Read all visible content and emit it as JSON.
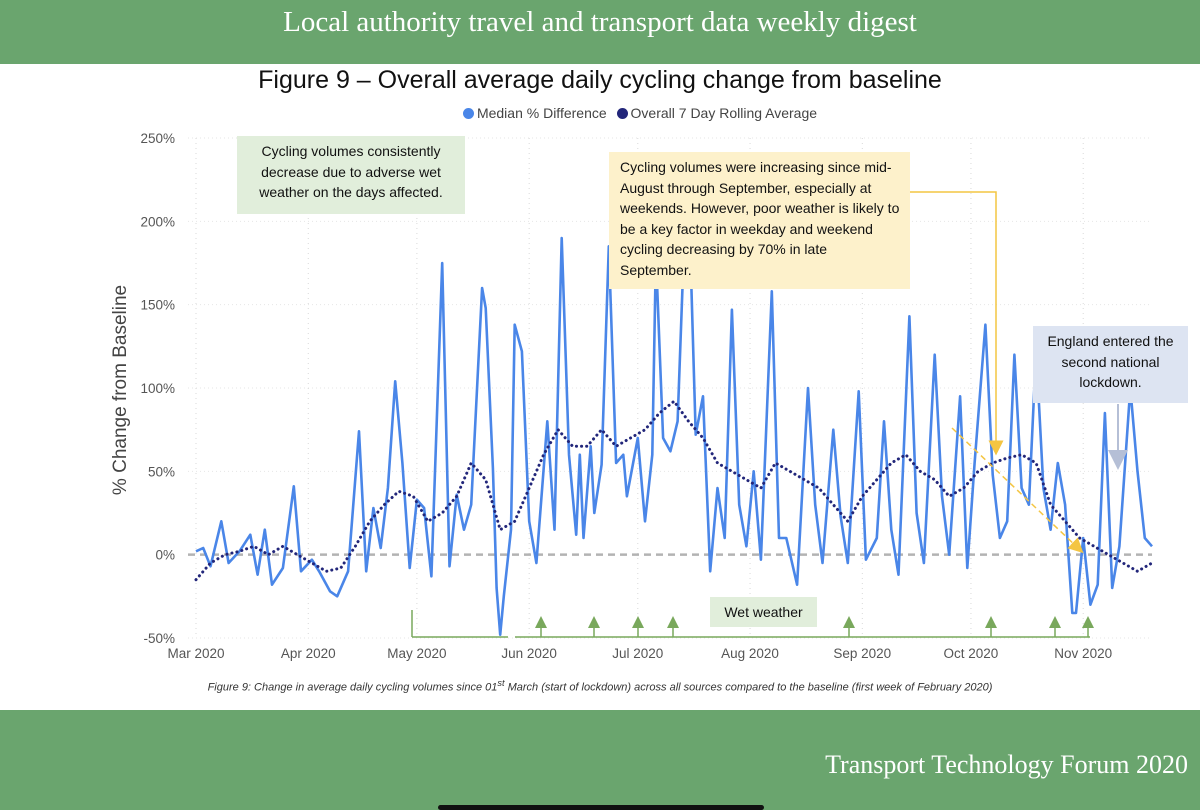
{
  "header": {
    "title": "Local authority travel and transport data weekly digest"
  },
  "footer": {
    "text": "Transport Technology Forum 2020"
  },
  "caption": {
    "prefix": "Figure 9: Change in average daily cycling volumes since 01",
    "superscript": "st",
    "suffix": " March (start of lockdown) across all sources compared to the baseline (first week of February 2020)"
  },
  "annotations": {
    "rain": "Cycling volumes consistently decrease due to adverse wet weather on the days affected.",
    "september": "Cycling volumes were increasing since mid-August through September, especially at weekends. However, poor weather is likely to be a key factor in weekday and weekend cycling decreasing by 70% in late September.",
    "lockdown": "England entered the second national lockdown.",
    "wet_weather": "Wet weather"
  },
  "colors": {
    "median": "#4a86e8",
    "rolling": "#22267a",
    "baseline": "#b3b3b3",
    "wet_markers": "#79a85c",
    "callout_arrow": "#f4c542",
    "lockdown_arrow": "#b5bfd6"
  },
  "chart_data": {
    "type": "line",
    "title": "Figure 9 – Overall average daily cycling change from baseline",
    "ylabel": "% Change from Baseline",
    "xlabel": "",
    "ylim": [
      -50,
      250
    ],
    "yticks": [
      -50,
      0,
      50,
      100,
      150,
      200,
      250
    ],
    "ytick_labels": [
      "-50%",
      "0%",
      "50%",
      "100%",
      "150%",
      "200%",
      "250%"
    ],
    "xlim": [
      "2020-03-01",
      "2020-11-20"
    ],
    "xticks": [
      "2020-03-01",
      "2020-04-01",
      "2020-05-01",
      "2020-06-01",
      "2020-07-01",
      "2020-08-01",
      "2020-09-01",
      "2020-10-01",
      "2020-11-01"
    ],
    "xtick_labels": [
      "Mar 2020",
      "Apr 2020",
      "May 2020",
      "Jun 2020",
      "Jul 2020",
      "Aug 2020",
      "Sep 2020",
      "Oct 2020",
      "Nov 2020"
    ],
    "legend": {
      "position": "top-center",
      "entries": [
        "Median % Difference",
        "Overall 7 Day Rolling Average"
      ]
    },
    "grid": {
      "vertical_dotted": true,
      "horizontal_dotted": true,
      "baseline_dashed": 0
    },
    "series": [
      {
        "name": "Median % Difference",
        "style": "solid",
        "points": [
          [
            "2020-03-01",
            2
          ],
          [
            "2020-03-03",
            4
          ],
          [
            "2020-03-05",
            -7
          ],
          [
            "2020-03-08",
            20
          ],
          [
            "2020-03-10",
            -5
          ],
          [
            "2020-03-13",
            2
          ],
          [
            "2020-03-16",
            12
          ],
          [
            "2020-03-18",
            -12
          ],
          [
            "2020-03-20",
            15
          ],
          [
            "2020-03-22",
            -18
          ],
          [
            "2020-03-25",
            -8
          ],
          [
            "2020-03-28",
            41
          ],
          [
            "2020-03-30",
            -10
          ],
          [
            "2020-04-02",
            -3
          ],
          [
            "2020-04-04",
            -10
          ],
          [
            "2020-04-07",
            -22
          ],
          [
            "2020-04-09",
            -25
          ],
          [
            "2020-04-12",
            -10
          ],
          [
            "2020-04-15",
            74
          ],
          [
            "2020-04-17",
            -10
          ],
          [
            "2020-04-19",
            28
          ],
          [
            "2020-04-21",
            4
          ],
          [
            "2020-04-23",
            40
          ],
          [
            "2020-04-25",
            104
          ],
          [
            "2020-04-27",
            55
          ],
          [
            "2020-04-29",
            -8
          ],
          [
            "2020-05-01",
            33
          ],
          [
            "2020-05-03",
            28
          ],
          [
            "2020-05-05",
            -13
          ],
          [
            "2020-05-08",
            175
          ],
          [
            "2020-05-10",
            -7
          ],
          [
            "2020-05-12",
            36
          ],
          [
            "2020-05-14",
            15
          ],
          [
            "2020-05-16",
            30
          ],
          [
            "2020-05-19",
            160
          ],
          [
            "2020-05-20",
            148
          ],
          [
            "2020-05-22",
            52
          ],
          [
            "2020-05-23",
            -20
          ],
          [
            "2020-05-24",
            -48
          ],
          [
            "2020-05-25",
            -25
          ],
          [
            "2020-05-27",
            15
          ],
          [
            "2020-05-28",
            138
          ],
          [
            "2020-05-30",
            122
          ],
          [
            "2020-06-01",
            20
          ],
          [
            "2020-06-03",
            -5
          ],
          [
            "2020-06-06",
            80
          ],
          [
            "2020-06-08",
            15
          ],
          [
            "2020-06-10",
            190
          ],
          [
            "2020-06-12",
            60
          ],
          [
            "2020-06-14",
            12
          ],
          [
            "2020-06-15",
            60
          ],
          [
            "2020-06-16",
            10
          ],
          [
            "2020-06-18",
            65
          ],
          [
            "2020-06-19",
            25
          ],
          [
            "2020-06-21",
            54
          ],
          [
            "2020-06-23",
            185
          ],
          [
            "2020-06-25",
            55
          ],
          [
            "2020-06-27",
            60
          ],
          [
            "2020-06-28",
            35
          ],
          [
            "2020-07-01",
            70
          ],
          [
            "2020-07-03",
            20
          ],
          [
            "2020-07-05",
            60
          ],
          [
            "2020-07-06",
            180
          ],
          [
            "2020-07-08",
            70
          ],
          [
            "2020-07-10",
            62
          ],
          [
            "2020-07-12",
            80
          ],
          [
            "2020-07-14",
            200
          ],
          [
            "2020-07-15",
            220
          ],
          [
            "2020-07-17",
            72
          ],
          [
            "2020-07-19",
            95
          ],
          [
            "2020-07-21",
            -10
          ],
          [
            "2020-07-23",
            40
          ],
          [
            "2020-07-25",
            10
          ],
          [
            "2020-07-27",
            147
          ],
          [
            "2020-07-29",
            30
          ],
          [
            "2020-07-31",
            5
          ],
          [
            "2020-08-02",
            50
          ],
          [
            "2020-08-04",
            -3
          ],
          [
            "2020-08-07",
            158
          ],
          [
            "2020-08-09",
            10
          ],
          [
            "2020-08-11",
            10
          ],
          [
            "2020-08-14",
            -18
          ],
          [
            "2020-08-17",
            100
          ],
          [
            "2020-08-19",
            30
          ],
          [
            "2020-08-21",
            -5
          ],
          [
            "2020-08-24",
            75
          ],
          [
            "2020-08-26",
            23
          ],
          [
            "2020-08-28",
            -5
          ],
          [
            "2020-08-31",
            98
          ],
          [
            "2020-09-02",
            -3
          ],
          [
            "2020-09-05",
            10
          ],
          [
            "2020-09-07",
            80
          ],
          [
            "2020-09-09",
            15
          ],
          [
            "2020-09-11",
            -12
          ],
          [
            "2020-09-14",
            143
          ],
          [
            "2020-09-16",
            25
          ],
          [
            "2020-09-18",
            -5
          ],
          [
            "2020-09-21",
            120
          ],
          [
            "2020-09-23",
            35
          ],
          [
            "2020-09-25",
            0
          ],
          [
            "2020-09-28",
            95
          ],
          [
            "2020-09-30",
            -8
          ],
          [
            "2020-10-02",
            55
          ],
          [
            "2020-10-05",
            138
          ],
          [
            "2020-10-07",
            48
          ],
          [
            "2020-10-09",
            10
          ],
          [
            "2020-10-11",
            20
          ],
          [
            "2020-10-13",
            120
          ],
          [
            "2020-10-15",
            40
          ],
          [
            "2020-10-17",
            30
          ],
          [
            "2020-10-19",
            123
          ],
          [
            "2020-10-21",
            40
          ],
          [
            "2020-10-23",
            15
          ],
          [
            "2020-10-25",
            55
          ],
          [
            "2020-10-27",
            30
          ],
          [
            "2020-10-29",
            -35
          ],
          [
            "2020-10-30",
            -35
          ],
          [
            "2020-11-01",
            10
          ],
          [
            "2020-11-03",
            -30
          ],
          [
            "2020-11-05",
            -18
          ],
          [
            "2020-11-07",
            85
          ],
          [
            "2020-11-09",
            -20
          ],
          [
            "2020-11-11",
            5
          ],
          [
            "2020-11-14",
            100
          ],
          [
            "2020-11-16",
            50
          ],
          [
            "2020-11-18",
            10
          ],
          [
            "2020-11-20",
            5
          ]
        ]
      },
      {
        "name": "Overall 7 Day Rolling Average",
        "style": "dotted",
        "points": [
          [
            "2020-03-01",
            -15
          ],
          [
            "2020-03-05",
            -5
          ],
          [
            "2020-03-09",
            0
          ],
          [
            "2020-03-13",
            2
          ],
          [
            "2020-03-17",
            5
          ],
          [
            "2020-03-21",
            0
          ],
          [
            "2020-03-25",
            5
          ],
          [
            "2020-03-29",
            0
          ],
          [
            "2020-04-02",
            -5
          ],
          [
            "2020-04-06",
            -10
          ],
          [
            "2020-04-10",
            -8
          ],
          [
            "2020-04-14",
            5
          ],
          [
            "2020-04-18",
            20
          ],
          [
            "2020-04-22",
            30
          ],
          [
            "2020-04-26",
            38
          ],
          [
            "2020-04-30",
            35
          ],
          [
            "2020-05-04",
            20
          ],
          [
            "2020-05-08",
            25
          ],
          [
            "2020-05-12",
            35
          ],
          [
            "2020-05-16",
            55
          ],
          [
            "2020-05-20",
            45
          ],
          [
            "2020-05-24",
            15
          ],
          [
            "2020-05-28",
            20
          ],
          [
            "2020-06-01",
            40
          ],
          [
            "2020-06-05",
            60
          ],
          [
            "2020-06-09",
            75
          ],
          [
            "2020-06-13",
            65
          ],
          [
            "2020-06-17",
            65
          ],
          [
            "2020-06-21",
            75
          ],
          [
            "2020-06-25",
            65
          ],
          [
            "2020-06-29",
            70
          ],
          [
            "2020-07-03",
            75
          ],
          [
            "2020-07-07",
            85
          ],
          [
            "2020-07-11",
            92
          ],
          [
            "2020-07-15",
            80
          ],
          [
            "2020-07-19",
            70
          ],
          [
            "2020-07-23",
            55
          ],
          [
            "2020-07-27",
            50
          ],
          [
            "2020-07-31",
            45
          ],
          [
            "2020-08-04",
            40
          ],
          [
            "2020-08-08",
            55
          ],
          [
            "2020-08-12",
            50
          ],
          [
            "2020-08-16",
            45
          ],
          [
            "2020-08-20",
            40
          ],
          [
            "2020-08-24",
            30
          ],
          [
            "2020-08-28",
            20
          ],
          [
            "2020-09-01",
            35
          ],
          [
            "2020-09-05",
            45
          ],
          [
            "2020-09-09",
            55
          ],
          [
            "2020-09-13",
            60
          ],
          [
            "2020-09-17",
            50
          ],
          [
            "2020-09-21",
            45
          ],
          [
            "2020-09-25",
            35
          ],
          [
            "2020-09-29",
            40
          ],
          [
            "2020-10-03",
            50
          ],
          [
            "2020-10-07",
            55
          ],
          [
            "2020-10-11",
            58
          ],
          [
            "2020-10-15",
            60
          ],
          [
            "2020-10-19",
            55
          ],
          [
            "2020-10-23",
            30
          ],
          [
            "2020-10-27",
            20
          ],
          [
            "2020-10-31",
            10
          ],
          [
            "2020-11-04",
            5
          ],
          [
            "2020-11-08",
            0
          ],
          [
            "2020-11-12",
            -5
          ],
          [
            "2020-11-16",
            -10
          ],
          [
            "2020-11-20",
            -5
          ]
        ]
      }
    ]
  }
}
